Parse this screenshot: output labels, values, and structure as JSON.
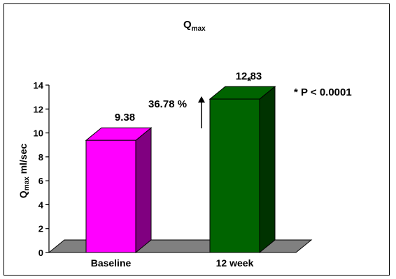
{
  "chart_data": {
    "type": "bar",
    "title": "Q",
    "title_sub": "max",
    "ylabel": "Q",
    "ylabel_sub": "max",
    "ylabel_unit": " ml/sec",
    "categories": [
      "Baseline",
      "12 week"
    ],
    "values": [
      9.38,
      12.83
    ],
    "value_labels": [
      "9.38",
      "12.83"
    ],
    "ylim": [
      0,
      14
    ],
    "yticks": [
      0,
      2,
      4,
      6,
      8,
      10,
      12,
      14
    ],
    "bar_colors": [
      "#ff00ff",
      "#006400"
    ],
    "bar_side_colors": [
      "#800080",
      "#003300"
    ],
    "floor_color": "#808080",
    "grid": false,
    "annotations": {
      "change": "36.78 %",
      "significance_marker": "*",
      "p_value": "* P < 0.0001"
    }
  }
}
